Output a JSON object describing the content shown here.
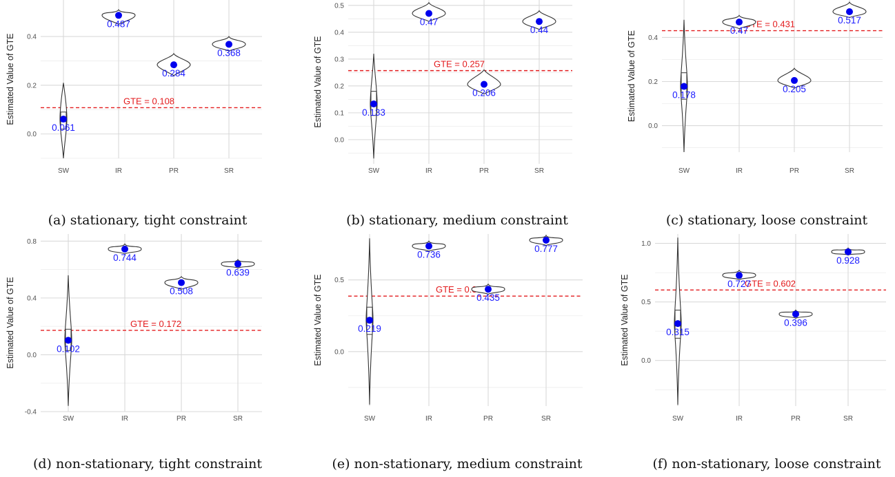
{
  "chart_data": [
    {
      "type": "violin",
      "caption": "(a) stationary, tight constraint",
      "ylabel": "Estimated Value of GTE",
      "categories": [
        "SW",
        "IR",
        "PR",
        "SR"
      ],
      "yticks": [
        "0.0",
        "0.2",
        "0.4"
      ],
      "ylim": [
        -0.1,
        0.55
      ],
      "ytick_values": [
        0.0,
        0.2,
        0.4
      ],
      "gte": 0.108,
      "gte_label": "GTE = 0.108",
      "means": [
        0.061,
        0.487,
        0.284,
        0.368
      ],
      "mean_labels": [
        "0.061",
        "0.487",
        "0.284",
        "0.368"
      ],
      "spread": [
        [
          -0.1,
          0.21
        ],
        [
          0.45,
          0.51
        ],
        [
          0.24,
          0.33
        ],
        [
          0.34,
          0.4
        ]
      ],
      "box": [
        [
          0.02,
          0.09
        ],
        null,
        null,
        null
      ]
    },
    {
      "type": "violin",
      "caption": "(b) stationary, medium constraint",
      "ylabel": "Estimated Value of GTE",
      "categories": [
        "SW",
        "IR",
        "PR",
        "SR"
      ],
      "yticks": [
        "0.0",
        "0.1",
        "0.2",
        "0.3",
        "0.4",
        "0.5"
      ],
      "ylim": [
        -0.09,
        0.52
      ],
      "ytick_values": [
        0.0,
        0.1,
        0.2,
        0.3,
        0.4,
        0.5
      ],
      "gte": 0.257,
      "gte_label": "GTE = 0.257",
      "means": [
        0.133,
        0.47,
        0.206,
        0.44
      ],
      "mean_labels": [
        "0.133",
        "0.47",
        "0.206",
        "0.44"
      ],
      "spread": [
        [
          -0.07,
          0.32
        ],
        [
          0.44,
          0.51
        ],
        [
          0.17,
          0.26
        ],
        [
          0.41,
          0.48
        ]
      ],
      "box": [
        [
          0.09,
          0.18
        ],
        null,
        null,
        null
      ]
    },
    {
      "type": "violin",
      "caption": "(c) stationary, loose constraint",
      "ylabel": "Estimated Value of GTE",
      "categories": [
        "SW",
        "IR",
        "PR",
        "SR"
      ],
      "yticks": [
        "0.0",
        "0.2",
        "0.4"
      ],
      "ylim": [
        -0.12,
        0.57
      ],
      "ytick_values": [
        0.0,
        0.2,
        0.4
      ],
      "gte": 0.431,
      "gte_label": "GTE = 0.431",
      "means": [
        0.178,
        0.47,
        0.205,
        0.517
      ],
      "mean_labels": [
        "0.178",
        "0.47",
        "0.205",
        "0.517"
      ],
      "spread": [
        [
          -0.12,
          0.48
        ],
        [
          0.44,
          0.5
        ],
        [
          0.17,
          0.26
        ],
        [
          0.49,
          0.56
        ]
      ],
      "box": [
        [
          0.12,
          0.24
        ],
        null,
        null,
        null
      ]
    },
    {
      "type": "violin",
      "caption": "(d) non-stationary, tight constraint",
      "ylabel": "Estimated Value of GTE",
      "categories": [
        "SW",
        "IR",
        "PR",
        "SR"
      ],
      "yticks": [
        "-0.4",
        "0.0",
        "0.4",
        "0.8"
      ],
      "ylim": [
        -0.4,
        0.85
      ],
      "ytick_values": [
        -0.4,
        0.0,
        0.4,
        0.8
      ],
      "gte": 0.172,
      "gte_label": "GTE = 0.172",
      "means": [
        0.102,
        0.744,
        0.508,
        0.639
      ],
      "mean_labels": [
        "0.102",
        "0.744",
        "0.508",
        "0.639"
      ],
      "spread": [
        [
          -0.36,
          0.56
        ],
        [
          0.71,
          0.78
        ],
        [
          0.46,
          0.55
        ],
        [
          0.61,
          0.67
        ]
      ],
      "box": [
        [
          0.03,
          0.18
        ],
        null,
        null,
        null
      ]
    },
    {
      "type": "violin",
      "caption": "(e) non-stationary, medium constraint",
      "ylabel": "Estimated Value of GTE",
      "categories": [
        "SW",
        "IR",
        "PR",
        "SR"
      ],
      "yticks": [
        "0.0",
        "0.5"
      ],
      "ylim": [
        -0.38,
        0.82
      ],
      "ytick_values": [
        0.0,
        0.5
      ],
      "gte": 0.387,
      "gte_label": "GTE = 0.387",
      "means": [
        0.219,
        0.736,
        0.435,
        0.777
      ],
      "mean_labels": [
        "0.219",
        "0.736",
        "0.435",
        "0.777"
      ],
      "spread": [
        [
          -0.37,
          0.79
        ],
        [
          0.7,
          0.77
        ],
        [
          0.4,
          0.47
        ],
        [
          0.74,
          0.81
        ]
      ],
      "box": [
        [
          0.12,
          0.31
        ],
        null,
        null,
        null
      ]
    },
    {
      "type": "violin",
      "caption": "(f) non-stationary, loose constraint",
      "ylabel": "Estimated Value of GTE",
      "categories": [
        "SW",
        "IR",
        "PR",
        "SR"
      ],
      "yticks": [
        "0.0",
        "0.5",
        "1.0"
      ],
      "ylim": [
        -0.39,
        1.08
      ],
      "ytick_values": [
        0.0,
        0.5,
        1.0
      ],
      "gte": 0.602,
      "gte_label": "GTE = 0.602",
      "means": [
        0.315,
        0.727,
        0.396,
        0.928
      ],
      "mean_labels": [
        "0.315",
        "0.727",
        "0.396",
        "0.928"
      ],
      "spread": [
        [
          -0.38,
          1.05
        ],
        [
          0.69,
          0.77
        ],
        [
          0.36,
          0.43
        ],
        [
          0.9,
          0.96
        ]
      ],
      "box": [
        [
          0.19,
          0.43
        ],
        null,
        null,
        null
      ]
    }
  ]
}
